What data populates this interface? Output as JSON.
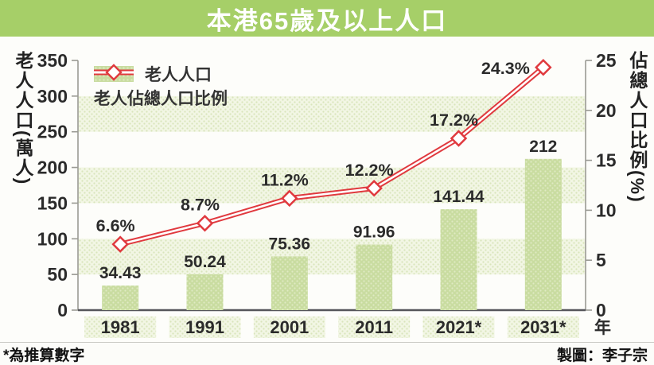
{
  "title": "本港65歲及以上人口",
  "footer": {
    "note": "*為推算數字",
    "credit": "製圖：李子宗"
  },
  "colors": {
    "banner_green": "#a6cf68",
    "bar_green": "#c9dca0",
    "bar_dot": "#dfeac2",
    "band_bg": "#f2f6e4",
    "band_dot": "#d9e5bb",
    "line_red": "#e0393e",
    "text_dark": "#2b2b2b",
    "axis_gray": "#9a9a94",
    "baseline_gray": "#55555a"
  },
  "chart_data": {
    "type": "bar+line combo",
    "categories": [
      "1981",
      "1991",
      "2001",
      "2011",
      "2021*",
      "2031*"
    ],
    "x_axis_unit": "年",
    "series": [
      {
        "name": "老人人口",
        "type": "bar",
        "axis": "left",
        "values": [
          34.43,
          50.24,
          75.36,
          91.96,
          141.44,
          212
        ],
        "value_labels": [
          "34.43",
          "50.24",
          "75.36",
          "91.96",
          "141.44",
          "212"
        ]
      },
      {
        "name": "老人佔總人口比例",
        "type": "line",
        "axis": "right",
        "values": [
          6.6,
          8.7,
          11.2,
          12.2,
          17.2,
          24.3
        ],
        "value_labels": [
          "6.6%",
          "8.7%",
          "11.2%",
          "12.2%",
          "17.2%",
          "24.3%"
        ]
      }
    ],
    "left_axis": {
      "title": "老人人口(萬人)",
      "min": 0,
      "max": 350,
      "step": 50,
      "ticks": [
        350,
        300,
        250,
        200,
        150,
        100,
        50,
        0
      ]
    },
    "right_axis": {
      "title": "佔總人口比例(%)",
      "min": 0,
      "max": 25,
      "step": 5,
      "ticks": [
        25,
        20,
        15,
        10,
        5,
        0
      ]
    },
    "legend": [
      "老人人口",
      "老人佔總人口比例"
    ],
    "legend_position": "top-left",
    "grid": "alternating dotted horizontal bands (50-unit intervals of left axis)",
    "band_value_ranges": [
      [
        250,
        300
      ],
      [
        150,
        200
      ],
      [
        50,
        100
      ]
    ]
  }
}
